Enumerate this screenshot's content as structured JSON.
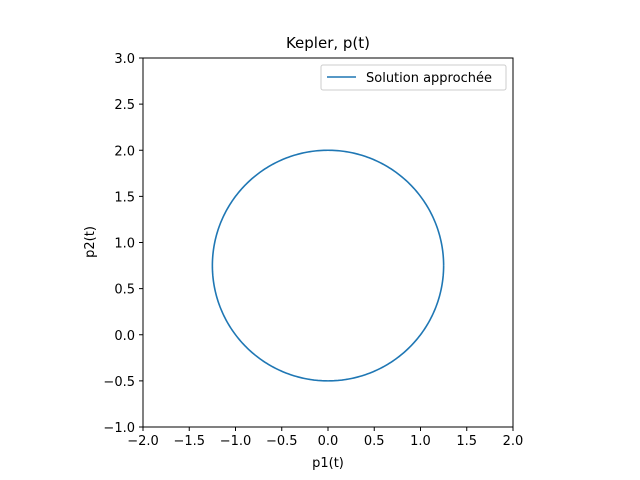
{
  "chart_data": {
    "type": "line",
    "title": "Kepler, p(t)",
    "xlabel": "p1(t)",
    "ylabel": "p2(t)",
    "xlim": [
      -2.0,
      2.0
    ],
    "ylim": [
      -1.0,
      3.0
    ],
    "xticks": [
      "−2.0",
      "−1.5",
      "−1.0",
      "−0.5",
      "0.0",
      "0.5",
      "1.0",
      "1.5",
      "2.0"
    ],
    "yticks": [
      "−1.0",
      "−0.5",
      "0.0",
      "0.5",
      "1.0",
      "1.5",
      "2.0",
      "2.5",
      "3.0"
    ],
    "xtick_values": [
      -2.0,
      -1.5,
      -1.0,
      -0.5,
      0.0,
      0.5,
      1.0,
      1.5,
      2.0
    ],
    "ytick_values": [
      -1.0,
      -0.5,
      0.0,
      0.5,
      1.0,
      1.5,
      2.0,
      2.5,
      3.0
    ],
    "grid": false,
    "legend": "top-right",
    "series": [
      {
        "name": "Solution approchée",
        "color": "#1f77b4",
        "shape": "circle",
        "center": [
          0.0,
          0.75
        ],
        "radius": 1.25,
        "extent": {
          "x": [
            -1.25,
            1.25
          ],
          "y": [
            -0.5,
            2.0
          ]
        }
      }
    ]
  }
}
